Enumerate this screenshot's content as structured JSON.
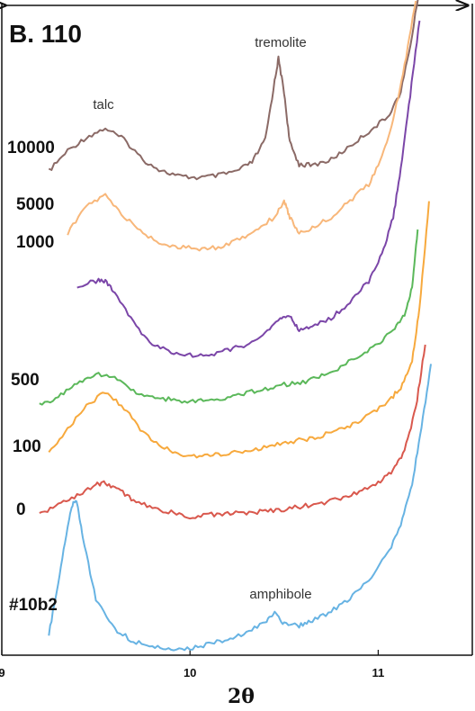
{
  "chart_data": {
    "type": "line",
    "title": "B. 110",
    "xlabel": "2θ",
    "ylabel": "",
    "xlim": [
      9,
      11.5
    ],
    "xticks": [
      "9",
      "10",
      "11"
    ],
    "grid": false,
    "annotations": [
      {
        "text": "tremolite",
        "x": 10.47
      },
      {
        "text": "talc",
        "x": 9.54
      },
      {
        "text": "amphibole",
        "x": 10.47
      }
    ],
    "series": [
      {
        "name": "10000",
        "color": "#8b6a66",
        "points": [
          [
            9.25,
            0.0
          ],
          [
            9.35,
            0.18
          ],
          [
            9.45,
            0.3
          ],
          [
            9.55,
            0.38
          ],
          [
            9.65,
            0.28
          ],
          [
            9.75,
            0.1
          ],
          [
            9.85,
            0.0
          ],
          [
            9.95,
            -0.05
          ],
          [
            10.05,
            -0.06
          ],
          [
            10.15,
            -0.04
          ],
          [
            10.25,
            0.0
          ],
          [
            10.33,
            0.08
          ],
          [
            10.4,
            0.28
          ],
          [
            10.45,
            0.8
          ],
          [
            10.47,
            1.0
          ],
          [
            10.5,
            0.7
          ],
          [
            10.53,
            0.25
          ],
          [
            10.58,
            0.06
          ],
          [
            10.65,
            0.05
          ],
          [
            10.75,
            0.1
          ],
          [
            10.85,
            0.22
          ],
          [
            10.95,
            0.35
          ],
          [
            11.05,
            0.48
          ],
          [
            11.12,
            0.7
          ],
          [
            11.18,
            1.2
          ],
          [
            11.24,
            1.85
          ]
        ]
      },
      {
        "name": "5000",
        "color": "#f8b77a",
        "points": [
          [
            9.35,
            0.05
          ],
          [
            9.45,
            0.3
          ],
          [
            9.55,
            0.4
          ],
          [
            9.65,
            0.2
          ],
          [
            9.75,
            0.05
          ],
          [
            9.85,
            -0.05
          ],
          [
            9.95,
            -0.08
          ],
          [
            10.05,
            -0.1
          ],
          [
            10.15,
            -0.08
          ],
          [
            10.25,
            -0.02
          ],
          [
            10.35,
            0.08
          ],
          [
            10.45,
            0.2
          ],
          [
            10.5,
            0.35
          ],
          [
            10.53,
            0.2
          ],
          [
            10.58,
            0.05
          ],
          [
            10.65,
            0.1
          ],
          [
            10.75,
            0.2
          ],
          [
            10.85,
            0.35
          ],
          [
            10.95,
            0.5
          ],
          [
            11.02,
            0.75
          ],
          [
            11.08,
            1.1
          ],
          [
            11.14,
            1.6
          ],
          [
            11.2,
            2.2
          ]
        ]
      },
      {
        "name": "1000",
        "color": "#7b46a8",
        "points": [
          [
            9.4,
            0.0
          ],
          [
            9.5,
            0.05
          ],
          [
            9.55,
            0.05
          ],
          [
            9.6,
            -0.05
          ],
          [
            9.7,
            -0.35
          ],
          [
            9.8,
            -0.55
          ],
          [
            9.9,
            -0.62
          ],
          [
            10.0,
            -0.65
          ],
          [
            10.1,
            -0.65
          ],
          [
            10.2,
            -0.6
          ],
          [
            10.3,
            -0.55
          ],
          [
            10.4,
            -0.45
          ],
          [
            10.48,
            -0.3
          ],
          [
            10.53,
            -0.28
          ],
          [
            10.58,
            -0.42
          ],
          [
            10.65,
            -0.38
          ],
          [
            10.75,
            -0.3
          ],
          [
            10.85,
            -0.15
          ],
          [
            10.95,
            0.05
          ],
          [
            11.02,
            0.3
          ],
          [
            11.08,
            0.65
          ],
          [
            11.12,
            1.1
          ],
          [
            11.17,
            1.8
          ],
          [
            11.22,
            2.5
          ]
        ]
      },
      {
        "name": "500",
        "color": "#5bb85a",
        "points": [
          [
            9.2,
            -0.15
          ],
          [
            9.3,
            -0.08
          ],
          [
            9.4,
            0.05
          ],
          [
            9.5,
            0.15
          ],
          [
            9.6,
            0.1
          ],
          [
            9.7,
            -0.02
          ],
          [
            9.8,
            -0.08
          ],
          [
            9.9,
            -0.1
          ],
          [
            10.0,
            -0.12
          ],
          [
            10.1,
            -0.1
          ],
          [
            10.2,
            -0.08
          ],
          [
            10.3,
            -0.04
          ],
          [
            10.4,
            0.0
          ],
          [
            10.5,
            0.04
          ],
          [
            10.6,
            0.06
          ],
          [
            10.7,
            0.12
          ],
          [
            10.8,
            0.2
          ],
          [
            10.9,
            0.32
          ],
          [
            11.0,
            0.42
          ],
          [
            11.08,
            0.55
          ],
          [
            11.14,
            0.7
          ],
          [
            11.18,
            0.95
          ],
          [
            11.21,
            1.5
          ]
        ]
      },
      {
        "name": "100",
        "color": "#f7a93d",
        "points": [
          [
            9.25,
            -0.05
          ],
          [
            9.35,
            0.15
          ],
          [
            9.45,
            0.38
          ],
          [
            9.55,
            0.5
          ],
          [
            9.65,
            0.35
          ],
          [
            9.75,
            0.12
          ],
          [
            9.85,
            -0.02
          ],
          [
            9.95,
            -0.08
          ],
          [
            10.05,
            -0.1
          ],
          [
            10.15,
            -0.08
          ],
          [
            10.25,
            -0.06
          ],
          [
            10.35,
            -0.03
          ],
          [
            10.45,
            0.0
          ],
          [
            10.55,
            0.04
          ],
          [
            10.65,
            0.07
          ],
          [
            10.75,
            0.12
          ],
          [
            10.85,
            0.18
          ],
          [
            10.95,
            0.28
          ],
          [
            11.05,
            0.4
          ],
          [
            11.12,
            0.55
          ],
          [
            11.18,
            0.8
          ],
          [
            11.22,
            1.3
          ],
          [
            11.27,
            2.3
          ]
        ]
      },
      {
        "name": "0",
        "color": "#d9584d",
        "points": [
          [
            9.2,
            -0.1
          ],
          [
            9.3,
            0.0
          ],
          [
            9.4,
            0.08
          ],
          [
            9.5,
            0.18
          ],
          [
            9.55,
            0.2
          ],
          [
            9.62,
            0.14
          ],
          [
            9.7,
            0.03
          ],
          [
            9.8,
            -0.04
          ],
          [
            9.9,
            -0.08
          ],
          [
            10.0,
            -0.12
          ],
          [
            10.1,
            -0.1
          ],
          [
            10.2,
            -0.09
          ],
          [
            10.3,
            -0.08
          ],
          [
            10.4,
            -0.07
          ],
          [
            10.5,
            -0.05
          ],
          [
            10.6,
            -0.02
          ],
          [
            10.7,
            0.01
          ],
          [
            10.8,
            0.05
          ],
          [
            10.9,
            0.12
          ],
          [
            11.0,
            0.2
          ],
          [
            11.08,
            0.32
          ],
          [
            11.14,
            0.5
          ],
          [
            11.2,
            0.9
          ],
          [
            11.25,
            1.5
          ]
        ]
      },
      {
        "name": "#10b2",
        "color": "#67b3e3",
        "points": [
          [
            9.25,
            0.1
          ],
          [
            9.3,
            0.55
          ],
          [
            9.35,
            1.05
          ],
          [
            9.38,
            1.25
          ],
          [
            9.4,
            1.25
          ],
          [
            9.43,
            0.95
          ],
          [
            9.5,
            0.4
          ],
          [
            9.6,
            0.15
          ],
          [
            9.7,
            0.04
          ],
          [
            9.8,
            0.0
          ],
          [
            9.9,
            -0.04
          ],
          [
            10.0,
            -0.02
          ],
          [
            10.1,
            0.02
          ],
          [
            10.2,
            0.06
          ],
          [
            10.3,
            0.12
          ],
          [
            10.4,
            0.22
          ],
          [
            10.45,
            0.28
          ],
          [
            10.5,
            0.2
          ],
          [
            10.58,
            0.18
          ],
          [
            10.65,
            0.22
          ],
          [
            10.75,
            0.3
          ],
          [
            10.85,
            0.42
          ],
          [
            10.95,
            0.58
          ],
          [
            11.05,
            0.8
          ],
          [
            11.12,
            1.05
          ],
          [
            11.18,
            1.4
          ],
          [
            11.23,
            1.9
          ],
          [
            11.28,
            2.45
          ]
        ]
      }
    ]
  }
}
